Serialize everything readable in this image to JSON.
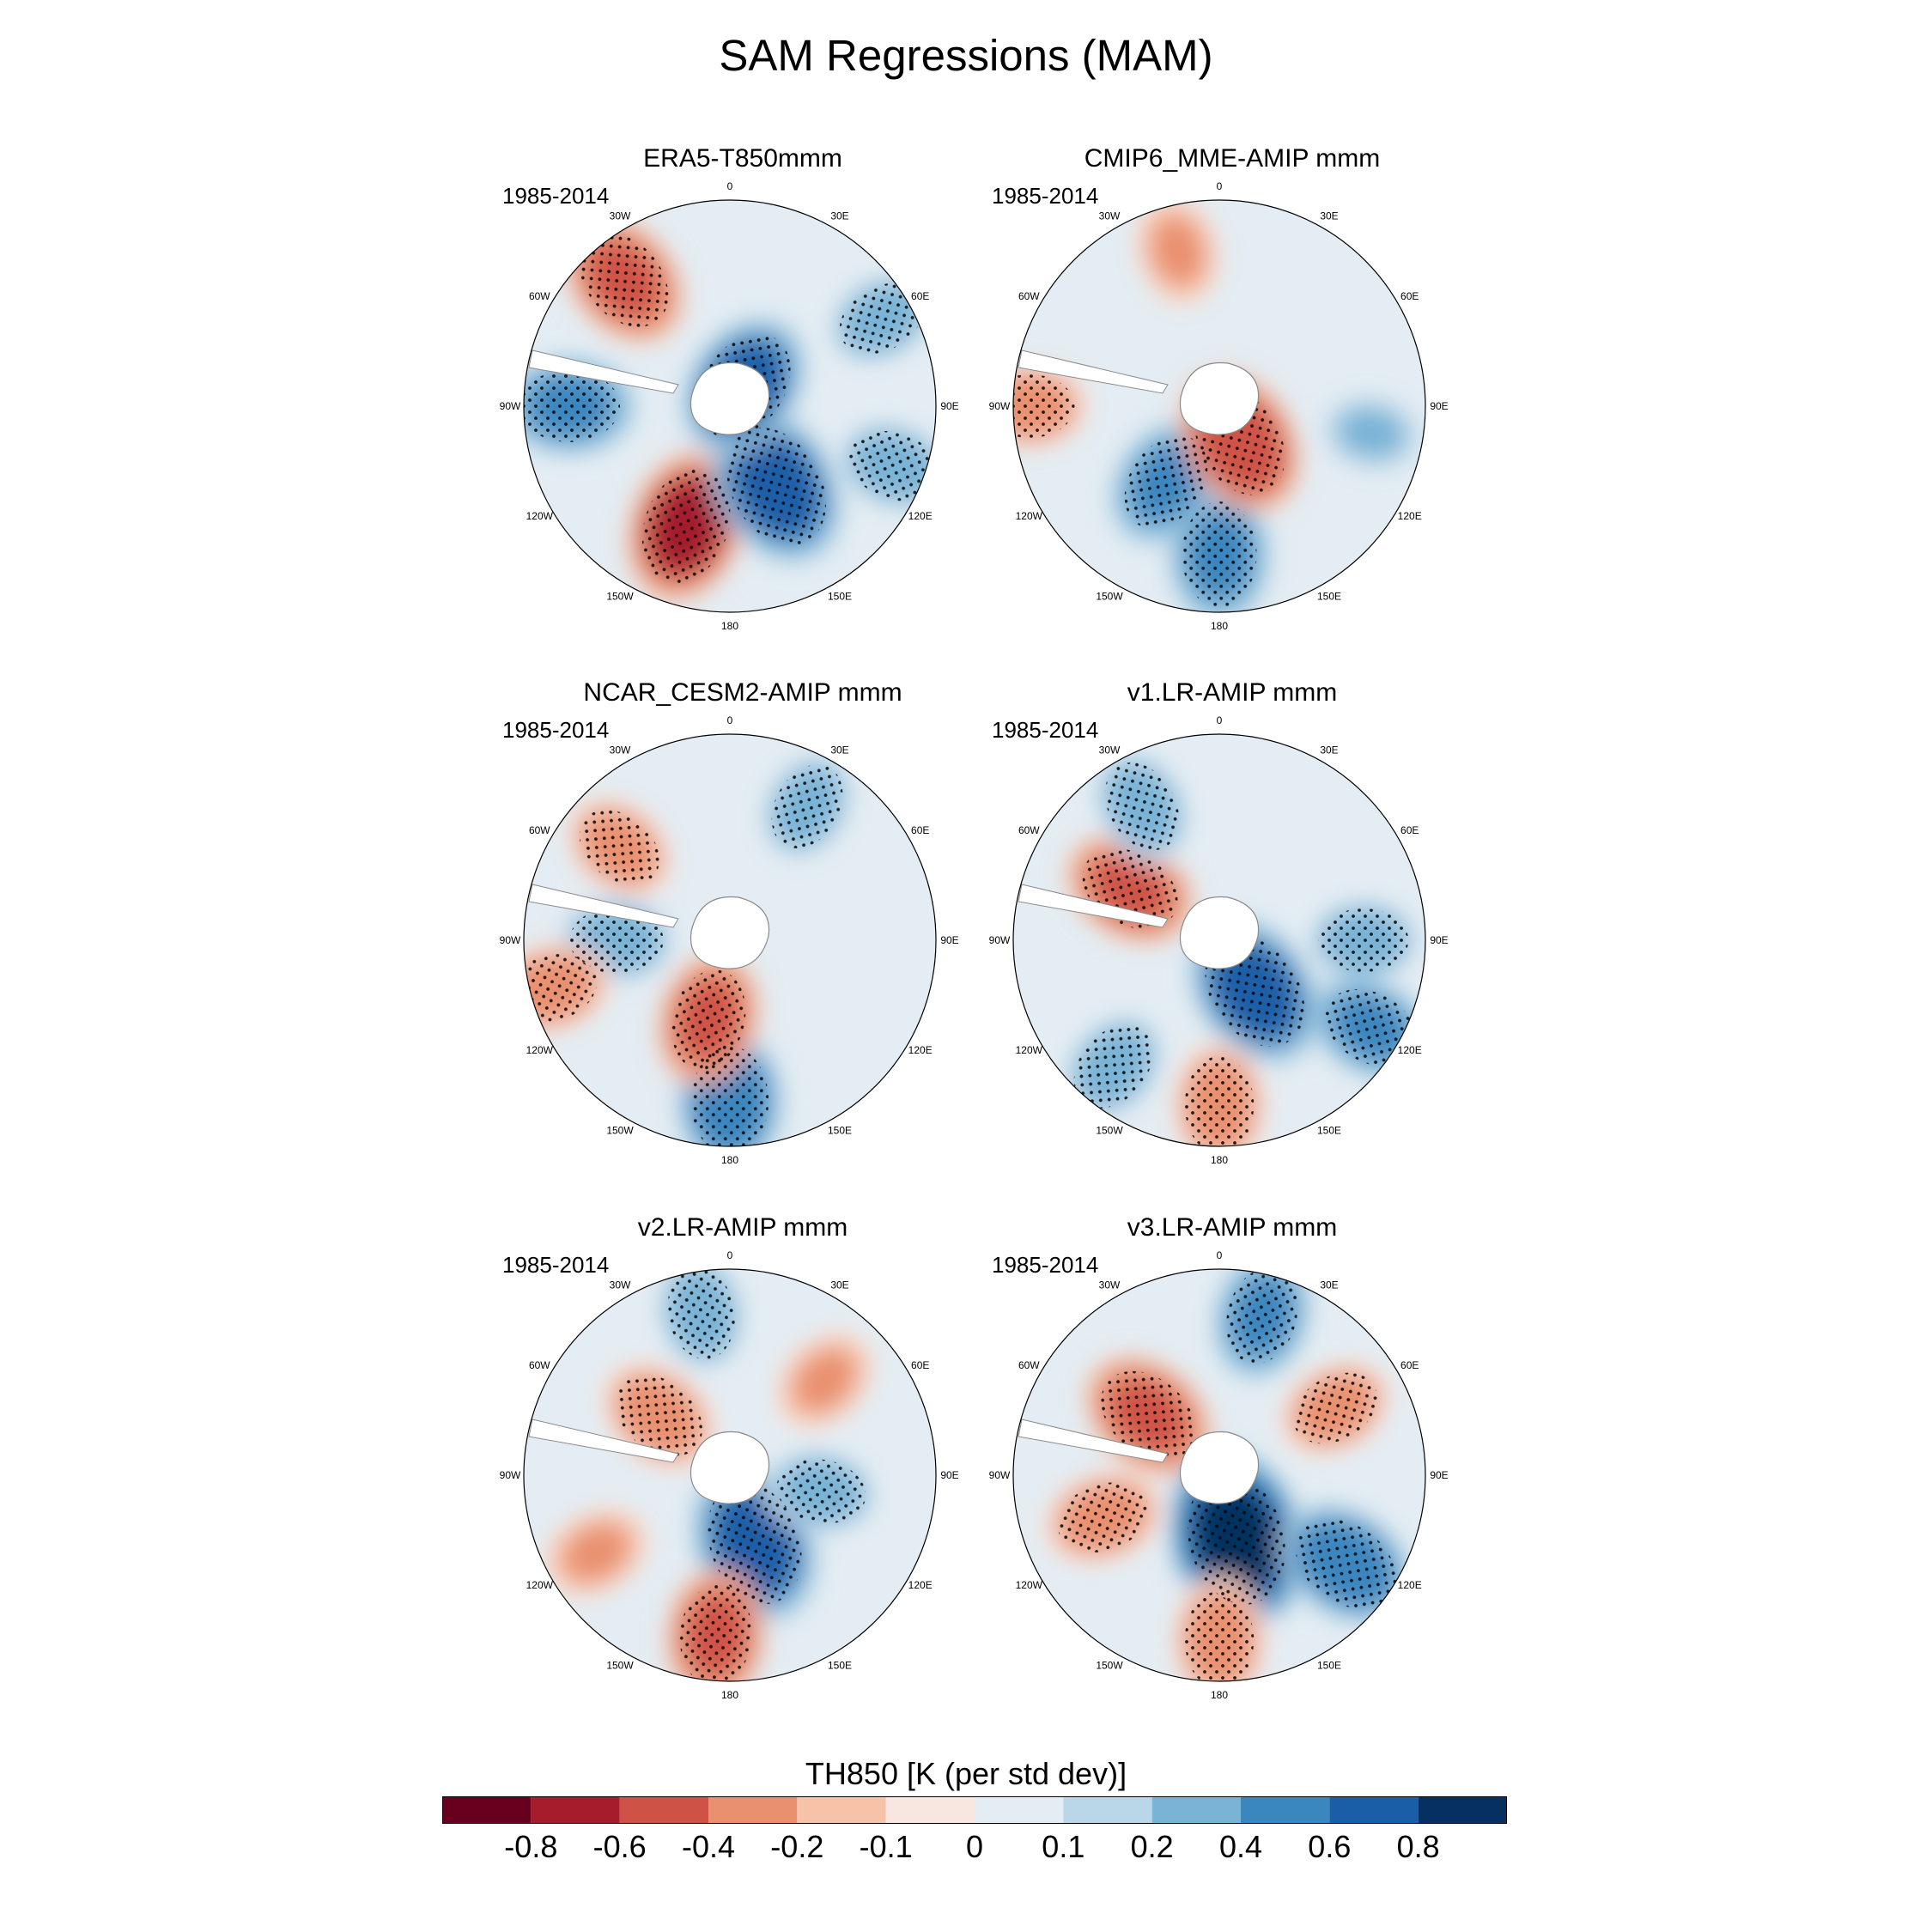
{
  "figure": {
    "title": "SAM Regressions (MAM)"
  },
  "chart_data": {
    "type": "heatmap",
    "projection": "south polar stereographic",
    "variable": "TH850",
    "colorbar_label": "TH850 [K (per std dev)]",
    "levels": [
      "-0.8",
      "-0.6",
      "-0.4",
      "-0.2",
      "-0.1",
      "0",
      "0.1",
      "0.2",
      "0.4",
      "0.6",
      "0.8"
    ],
    "colors": [
      "#67001f",
      "#a51d2d",
      "#cf5246",
      "#e9906f",
      "#f7c3a8",
      "#f8e7e0",
      "#e4edf3",
      "#b9d7e9",
      "#79b3d6",
      "#3a86bf",
      "#1a5ea8",
      "#053061"
    ],
    "lon_labels": [
      "0",
      "30E",
      "60E",
      "90E",
      "120E",
      "150E",
      "180",
      "150W",
      "120W",
      "90W",
      "60W",
      "30W"
    ],
    "panels": [
      {
        "title": "ERA5-T850mmm",
        "period": "1985-2014",
        "blobs": [
          {
            "lon": 200,
            "colat": 0.62,
            "value": -0.65
          },
          {
            "lon": 150,
            "colat": 0.45,
            "value": 0.75
          },
          {
            "lon": 35,
            "colat": 0.12,
            "value": 0.6
          },
          {
            "lon": 270,
            "colat": 0.78,
            "value": 0.45
          },
          {
            "lon": 320,
            "colat": 0.8,
            "value": -0.5
          },
          {
            "lon": 60,
            "colat": 0.85,
            "value": 0.3
          },
          {
            "lon": 110,
            "colat": 0.85,
            "value": 0.35
          }
        ]
      },
      {
        "title": "CMIP6_MME-AMIP  mmm",
        "period": "1985-2014",
        "blobs": [
          {
            "lon": 180,
            "colat": 0.72,
            "value": 0.5
          },
          {
            "lon": 215,
            "colat": 0.45,
            "value": 0.45
          },
          {
            "lon": 150,
            "colat": 0.2,
            "value": -0.6
          },
          {
            "lon": 345,
            "colat": 0.78,
            "value": -0.25
          },
          {
            "lon": 270,
            "colat": 0.92,
            "value": -0.3
          },
          {
            "lon": 100,
            "colat": 0.75,
            "value": 0.2
          }
        ]
      },
      {
        "title": "NCAR_CESM2-AMIP  mmm",
        "period": "1985-2014",
        "blobs": [
          {
            "lon": 180,
            "colat": 0.78,
            "value": 0.55
          },
          {
            "lon": 195,
            "colat": 0.4,
            "value": -0.45
          },
          {
            "lon": 270,
            "colat": 0.55,
            "value": 0.35
          },
          {
            "lon": 310,
            "colat": 0.7,
            "value": -0.3
          },
          {
            "lon": 255,
            "colat": 0.9,
            "value": -0.35
          },
          {
            "lon": 30,
            "colat": 0.75,
            "value": 0.3
          }
        ]
      },
      {
        "title": "v1.LR-AMIP  mmm",
        "period": "1985-2014",
        "blobs": [
          {
            "lon": 145,
            "colat": 0.3,
            "value": 0.7
          },
          {
            "lon": 180,
            "colat": 0.8,
            "value": -0.4
          },
          {
            "lon": 220,
            "colat": 0.8,
            "value": 0.35
          },
          {
            "lon": 300,
            "colat": 0.5,
            "value": -0.45
          },
          {
            "lon": 330,
            "colat": 0.75,
            "value": 0.35
          },
          {
            "lon": 90,
            "colat": 0.7,
            "value": 0.3
          },
          {
            "lon": 120,
            "colat": 0.85,
            "value": 0.4
          }
        ]
      },
      {
        "title": "v2.LR-AMIP  mmm",
        "period": "1985-2014",
        "blobs": [
          {
            "lon": 160,
            "colat": 0.35,
            "value": 0.75
          },
          {
            "lon": 185,
            "colat": 0.78,
            "value": -0.45
          },
          {
            "lon": 310,
            "colat": 0.45,
            "value": -0.4
          },
          {
            "lon": 350,
            "colat": 0.8,
            "value": 0.35
          },
          {
            "lon": 100,
            "colat": 0.45,
            "value": 0.3
          },
          {
            "lon": 45,
            "colat": 0.65,
            "value": -0.25
          },
          {
            "lon": 240,
            "colat": 0.75,
            "value": -0.25
          }
        ]
      },
      {
        "title": "v3.LR-AMIP  mmm",
        "period": "1985-2014",
        "blobs": [
          {
            "lon": 165,
            "colat": 0.32,
            "value": 0.85
          },
          {
            "lon": 310,
            "colat": 0.45,
            "value": -0.5
          },
          {
            "lon": 125,
            "colat": 0.75,
            "value": 0.55
          },
          {
            "lon": 180,
            "colat": 0.8,
            "value": -0.4
          },
          {
            "lon": 250,
            "colat": 0.6,
            "value": -0.35
          },
          {
            "lon": 15,
            "colat": 0.8,
            "value": 0.4
          },
          {
            "lon": 60,
            "colat": 0.65,
            "value": -0.3
          }
        ]
      }
    ]
  }
}
